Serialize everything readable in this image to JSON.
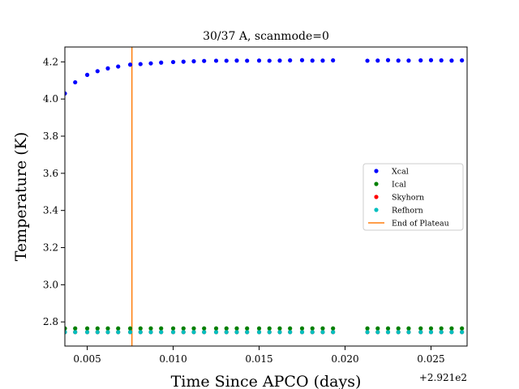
{
  "chart_data": {
    "type": "scatter",
    "title": "30/37 A, scanmode=0",
    "xlabel": "Time Since APCO (days)",
    "ylabel": "Temperature (K)",
    "offset_label": "+2.921e2",
    "xlim": [
      0.0037,
      0.0271
    ],
    "ylim": [
      2.67,
      4.28
    ],
    "xticks": [
      0.005,
      0.01,
      0.015,
      0.02,
      0.025
    ],
    "xtick_labels": [
      "0.005",
      "0.010",
      "0.015",
      "0.020",
      "0.025"
    ],
    "yticks": [
      2.8,
      3.0,
      3.2,
      3.4,
      3.6,
      3.8,
      4.0,
      4.2
    ],
    "ytick_labels": [
      "2.8",
      "3.0",
      "3.2",
      "3.4",
      "3.6",
      "3.8",
      "4.0",
      "4.2"
    ],
    "x": [
      0.0037,
      0.0043,
      0.005,
      0.0056,
      0.0062,
      0.0068,
      0.0075,
      0.0081,
      0.0087,
      0.0093,
      0.01,
      0.0106,
      0.0112,
      0.0118,
      0.0125,
      0.0131,
      0.0137,
      0.0143,
      0.015,
      0.0156,
      0.0162,
      0.0168,
      0.0175,
      0.0181,
      0.0187,
      0.0193,
      0.0213,
      0.0219,
      0.0225,
      0.0231,
      0.0237,
      0.0244,
      0.025,
      0.0256,
      0.0262,
      0.0268
    ],
    "series": [
      {
        "name": "Xcal",
        "color": "#0000ff",
        "values": [
          4.03,
          4.09,
          4.13,
          4.15,
          4.165,
          4.175,
          4.185,
          4.188,
          4.192,
          4.196,
          4.199,
          4.201,
          4.203,
          4.205,
          4.206,
          4.206,
          4.207,
          4.206,
          4.207,
          4.206,
          4.207,
          4.208,
          4.209,
          4.207,
          4.207,
          4.208,
          4.206,
          4.207,
          4.209,
          4.207,
          4.207,
          4.208,
          4.209,
          4.208,
          4.207,
          4.208
        ]
      },
      {
        "name": "Ical",
        "color": "#008000",
        "values": [
          2.765,
          2.765,
          2.765,
          2.765,
          2.765,
          2.765,
          2.765,
          2.765,
          2.765,
          2.765,
          2.765,
          2.765,
          2.765,
          2.765,
          2.765,
          2.765,
          2.765,
          2.765,
          2.765,
          2.765,
          2.765,
          2.765,
          2.765,
          2.765,
          2.765,
          2.765,
          2.765,
          2.765,
          2.765,
          2.765,
          2.765,
          2.765,
          2.765,
          2.765,
          2.765,
          2.765
        ]
      },
      {
        "name": "Skyhorn",
        "color": "#ff0000",
        "values": [
          2.745,
          2.745,
          2.745,
          2.745,
          2.745,
          2.745,
          2.745,
          2.745,
          2.745,
          2.745,
          2.745,
          2.745,
          2.745,
          2.745,
          2.745,
          2.745,
          2.745,
          2.745,
          2.745,
          2.745,
          2.745,
          2.745,
          2.745,
          2.745,
          2.745,
          2.745,
          2.745,
          2.745,
          2.745,
          2.745,
          2.745,
          2.745,
          2.745,
          2.745,
          2.745,
          2.745
        ]
      },
      {
        "name": "Refhorn",
        "color": "#00bfbf",
        "values": [
          2.745,
          2.745,
          2.745,
          2.745,
          2.745,
          2.745,
          2.745,
          2.745,
          2.745,
          2.745,
          2.745,
          2.745,
          2.745,
          2.745,
          2.745,
          2.745,
          2.745,
          2.745,
          2.745,
          2.745,
          2.745,
          2.745,
          2.745,
          2.745,
          2.745,
          2.745,
          2.745,
          2.745,
          2.745,
          2.745,
          2.745,
          2.745,
          2.745,
          2.745,
          2.745,
          2.745
        ]
      }
    ],
    "vline": {
      "name": "End of Plateau",
      "x": 0.0076,
      "color": "#ff7f0e"
    },
    "legend": {
      "location": "right",
      "entries": [
        "Xcal",
        "Ical",
        "Skyhorn",
        "Refhorn",
        "End of Plateau"
      ]
    },
    "grid": false
  }
}
